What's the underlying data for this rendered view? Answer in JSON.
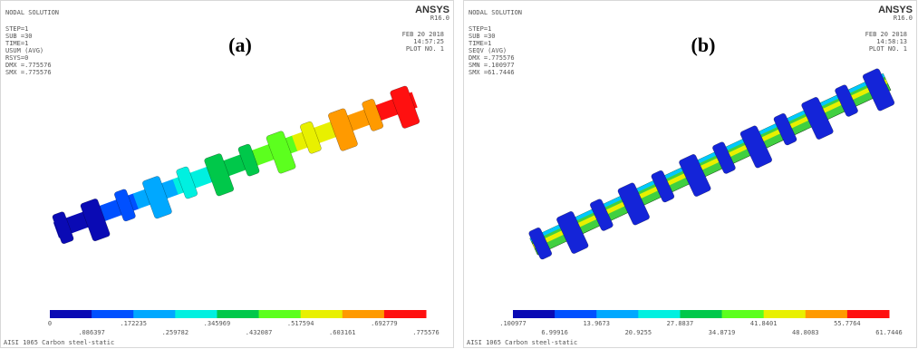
{
  "panels": [
    {
      "label": "(a)",
      "brand": "ANSYS",
      "version": "R16.0",
      "title": "NODAL SOLUTION",
      "info": [
        "STEP=1",
        "SUB =30",
        "TIME=1",
        "USUM     (AVG)",
        "RSYS=0",
        "DMX =.775576",
        "SMX =.775576"
      ],
      "date": [
        "FEB 20 2018",
        "14:57:25",
        "PLOT NO.   1"
      ],
      "legend": [
        "0",
        ".086397",
        ".172235",
        ".259782",
        ".345969",
        ".432087",
        ".517594",
        ".603161",
        ".692779",
        ".775576"
      ],
      "footer": "AISI 1065 Carbon steel-static"
    },
    {
      "label": "(b)",
      "brand": "ANSYS",
      "version": "R16.0",
      "title": "NODAL SOLUTION",
      "info": [
        "STEP=1",
        "SUB =30",
        "TIME=1",
        "SEQV     (AVG)",
        "DMX =.775576",
        "SMN =.100977",
        "SMX =61.7446"
      ],
      "date": [
        "FEB 20 2018",
        "14:58:13",
        "PLOT NO.   1"
      ],
      "legend": [
        ".100977",
        "6.99916",
        "13.9673",
        "20.9255",
        "27.8837",
        "34.8719",
        "41.8401",
        "48.8083",
        "55.7764",
        "61.7446"
      ],
      "footer": "AISI 1065 Carbon steel-static"
    }
  ]
}
